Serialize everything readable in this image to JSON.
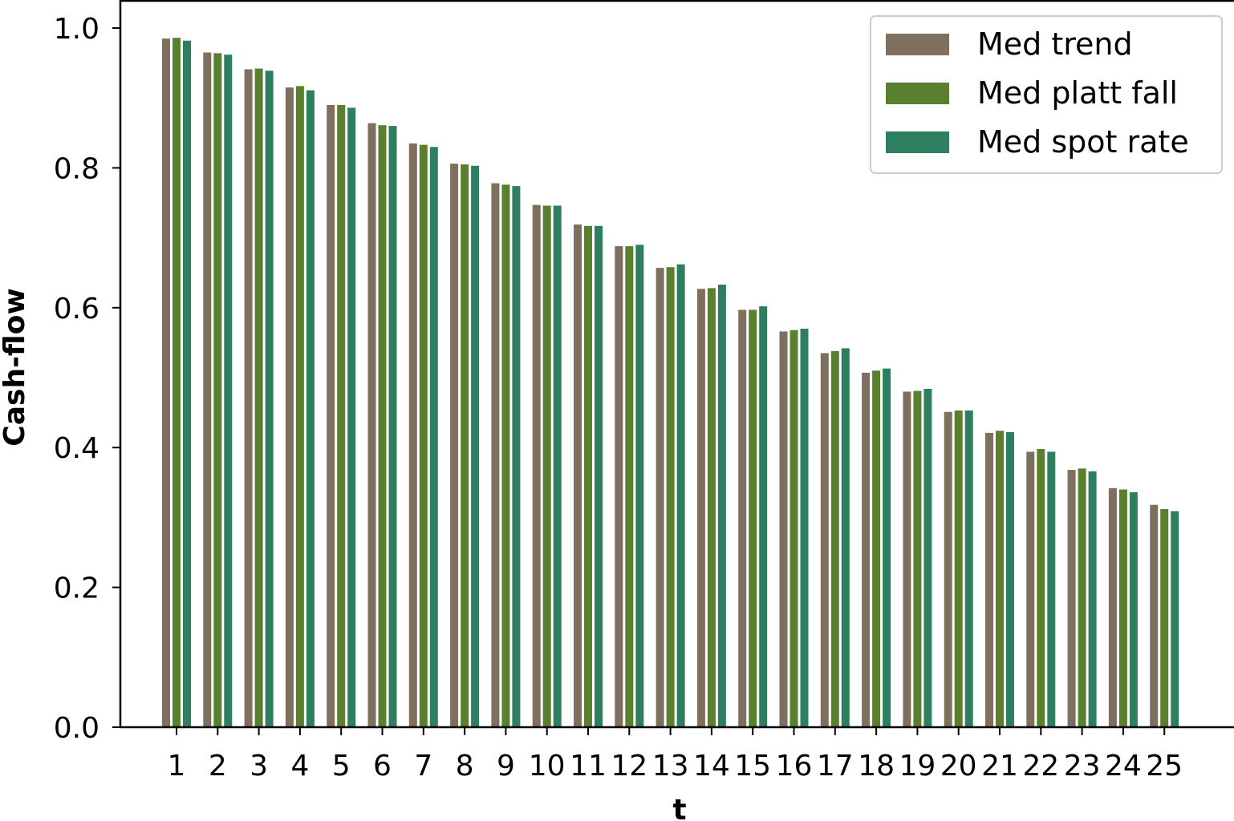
{
  "chart_data": {
    "type": "bar",
    "title": "",
    "xlabel": "t",
    "ylabel": "Cash-flow",
    "ylim": [
      0,
      1.05
    ],
    "yticks": [
      "0.0",
      "0.2",
      "0.4",
      "0.6",
      "0.8",
      "1.0"
    ],
    "ytick_values": [
      0.0,
      0.2,
      0.4,
      0.6,
      0.8,
      1.0
    ],
    "categories": [
      "1",
      "2",
      "3",
      "4",
      "5",
      "6",
      "7",
      "8",
      "9",
      "10",
      "11",
      "12",
      "13",
      "14",
      "15",
      "16",
      "17",
      "18",
      "19",
      "20",
      "21",
      "22",
      "23",
      "24",
      "25"
    ],
    "legend_position": "top-right",
    "grid": false,
    "series": [
      {
        "name": "Med trend",
        "color": "#7f6f5f",
        "values": [
          0.985,
          0.965,
          0.941,
          0.915,
          0.89,
          0.864,
          0.835,
          0.806,
          0.778,
          0.747,
          0.719,
          0.688,
          0.657,
          0.627,
          0.597,
          0.566,
          0.535,
          0.507,
          0.48,
          0.451,
          0.421,
          0.394,
          0.368,
          0.342,
          0.318
        ]
      },
      {
        "name": "Med platt fall",
        "color": "#5a7f2f",
        "values": [
          0.986,
          0.964,
          0.942,
          0.917,
          0.89,
          0.861,
          0.833,
          0.805,
          0.776,
          0.746,
          0.717,
          0.688,
          0.658,
          0.628,
          0.597,
          0.568,
          0.538,
          0.51,
          0.481,
          0.453,
          0.424,
          0.398,
          0.37,
          0.34,
          0.312
        ]
      },
      {
        "name": "Med spot rate",
        "color": "#2e7f5f",
        "values": [
          0.982,
          0.962,
          0.939,
          0.911,
          0.886,
          0.86,
          0.83,
          0.803,
          0.774,
          0.746,
          0.717,
          0.69,
          0.662,
          0.633,
          0.602,
          0.57,
          0.542,
          0.513,
          0.484,
          0.453,
          0.422,
          0.394,
          0.366,
          0.336,
          0.309
        ]
      }
    ]
  }
}
